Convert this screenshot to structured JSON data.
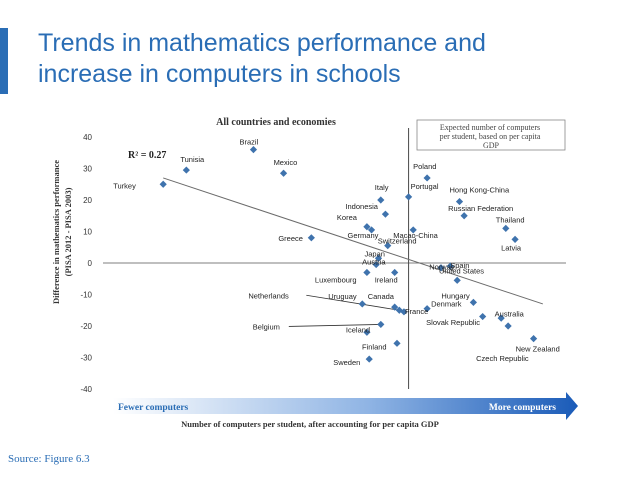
{
  "slide": {
    "title_line1": "Trends in mathematics performance and",
    "title_line2": "increase in computers in schools",
    "source": "Source: Figure 6.3"
  },
  "colors": {
    "accent": "#2a6db5",
    "marker": "#3f73ad",
    "trend": "#6b6b6b",
    "axis": "#7f7f7f"
  },
  "chart_data": {
    "type": "scatter",
    "title": "All countries and economies",
    "ylabel_line1": "Difference in mathematics performance",
    "ylabel_line2": "(PISA 2012 - PISA 2003)",
    "xlabel": "Number of computers per student, after accounting for per capita GDP",
    "arrow_left_label": "Fewer computers",
    "arrow_right_label": "More computers",
    "r_squared_label": "R² = 0.27",
    "reference_line_label": "Expected number of computers per student, based on per capita GDP",
    "xlim": [
      0,
      100
    ],
    "ylim": [
      -40,
      40
    ],
    "yticks": [
      40,
      30,
      20,
      10,
      0,
      -10,
      -20,
      -30,
      -40
    ],
    "ytick_labels": [
      "40",
      "30",
      "20",
      "10",
      "0",
      "-10",
      "-20",
      "-30",
      "-40"
    ],
    "reference_x": 66,
    "trend_line": {
      "x1": 13,
      "y1": 27,
      "x2": 95,
      "y2": -13
    },
    "points": [
      {
        "label": "Brazil",
        "x": 32.5,
        "y": 36
      },
      {
        "label": "Tunisia",
        "x": 18,
        "y": 29.5
      },
      {
        "label": "Turkey",
        "x": 13,
        "y": 25
      },
      {
        "label": "Mexico",
        "x": 39,
        "y": 28.5
      },
      {
        "label": "Poland",
        "x": 70,
        "y": 27
      },
      {
        "label": "Italy",
        "x": 60,
        "y": 20
      },
      {
        "label": "Portugal",
        "x": 66,
        "y": 21
      },
      {
        "label": "Hong Kong-China",
        "x": 77,
        "y": 19.5
      },
      {
        "label": "Indonesia",
        "x": 61,
        "y": 15.5
      },
      {
        "label": "Russian Federation",
        "x": 78,
        "y": 15
      },
      {
        "label": "Korea",
        "x": 57,
        "y": 11.5
      },
      {
        "label": "Thailand",
        "x": 87,
        "y": 11
      },
      {
        "label": "Germany",
        "x": 58,
        "y": 10.5
      },
      {
        "label": "Macao-China",
        "x": 67,
        "y": 10.5
      },
      {
        "label": "Greece",
        "x": 45,
        "y": 8
      },
      {
        "label": "Switzerland",
        "x": 61.5,
        "y": 5.5
      },
      {
        "label": "Latvia",
        "x": 89,
        "y": 7.5
      },
      {
        "label": "Japan",
        "x": 59.5,
        "y": 1.5
      },
      {
        "label": "Austria",
        "x": 59,
        "y": -0.5
      },
      {
        "label": "Spain",
        "x": 75,
        "y": -1
      },
      {
        "label": "United States",
        "x": 73,
        "y": -1.5
      },
      {
        "label": "Luxembourg",
        "x": 57,
        "y": -3
      },
      {
        "label": "Ireland",
        "x": 63,
        "y": -3
      },
      {
        "label": "Norway",
        "x": 76.5,
        "y": -5.5
      },
      {
        "label": "Uruguay",
        "x": 56,
        "y": -13
      },
      {
        "label": "Hungary",
        "x": 80,
        "y": -12.5
      },
      {
        "label": "Canada",
        "x": 63,
        "y": -14
      },
      {
        "label": "Denmark",
        "x": 70,
        "y": -14.5
      },
      {
        "label": "Netherlands",
        "x": 64,
        "y": -15
      },
      {
        "label": "France",
        "x": 65,
        "y": -15.5
      },
      {
        "label": "Australia",
        "x": 82,
        "y": -17
      },
      {
        "label": "Slovak Republic",
        "x": 86,
        "y": -17.5
      },
      {
        "label": "Belgium",
        "x": 60,
        "y": -19.5
      },
      {
        "label": "Iceland",
        "x": 57,
        "y": -22
      },
      {
        "label": "New Zealand",
        "x": 93,
        "y": -24
      },
      {
        "label": "Finland",
        "x": 63.5,
        "y": -25.5
      },
      {
        "label": "Czech Republic",
        "x": 87.5,
        "y": -20
      },
      {
        "label": "Sweden",
        "x": 57.5,
        "y": -30.5
      }
    ]
  }
}
